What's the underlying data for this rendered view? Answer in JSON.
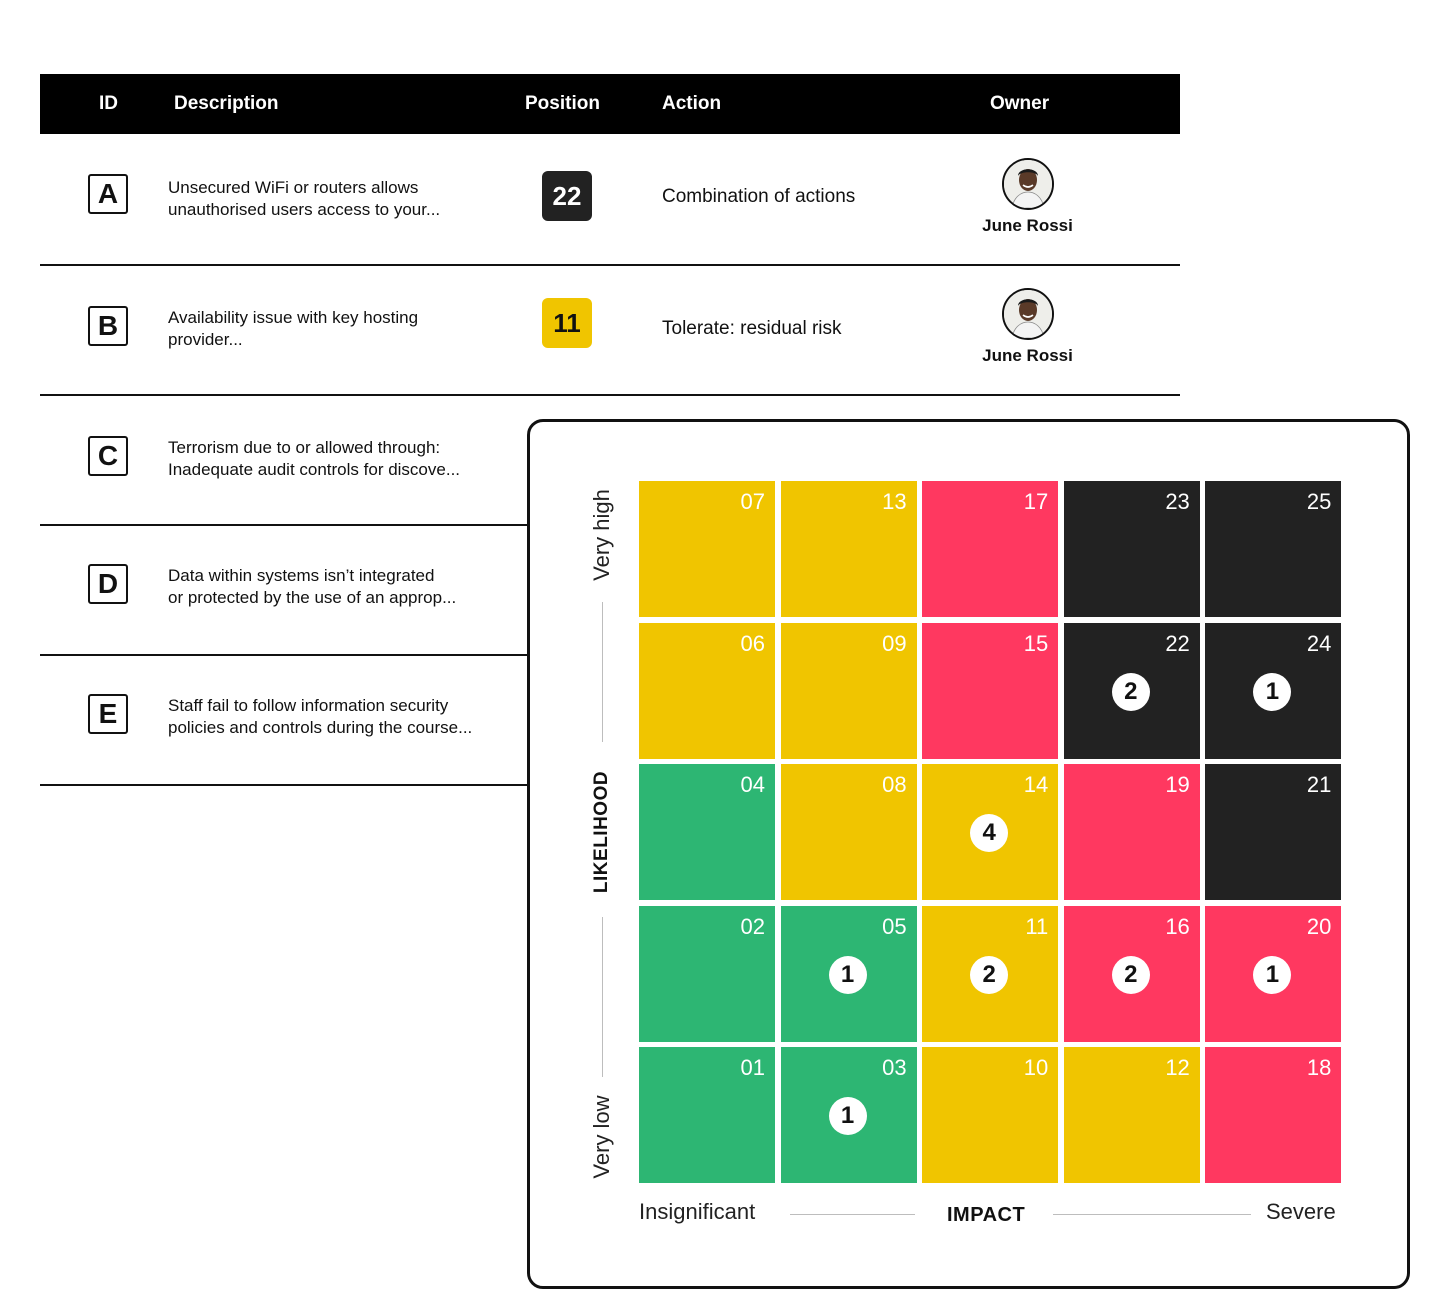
{
  "table": {
    "headers": {
      "id": "ID",
      "description": "Description",
      "position": "Position",
      "action": "Action",
      "owner": "Owner"
    },
    "rows": [
      {
        "id": "A",
        "description_lines": [
          "Unsecured WiFi or routers allows",
          "unauthorised users access to your..."
        ],
        "position": "22",
        "position_color": "#222222",
        "action": "Combination of actions",
        "owner": "June Rossi"
      },
      {
        "id": "B",
        "description_lines": [
          "Availability issue with key hosting",
          "provider..."
        ],
        "position": "11",
        "position_color": "#f0c500",
        "action": "Tolerate: residual risk",
        "owner": "June Rossi"
      },
      {
        "id": "C",
        "description_lines": [
          "Terrorism due to or allowed through:",
          "Inadequate audit controls for discove..."
        ]
      },
      {
        "id": "D",
        "description_lines": [
          "Data within systems isn’t integrated",
          "or protected by the use of an approp..."
        ]
      },
      {
        "id": "E",
        "description_lines": [
          "Staff fail to follow information security",
          "policies and controls during the course..."
        ]
      }
    ]
  },
  "matrix": {
    "colors": {
      "green": "#2db673",
      "yellow": "#f0c500",
      "red": "#ff3860",
      "black": "#222222"
    },
    "y_axis": {
      "title": "LIKELIHOOD",
      "high_label": "Very high",
      "low_label": "Very low"
    },
    "x_axis": {
      "title": "IMPACT",
      "low_label": "Insignificant",
      "high_label": "Severe"
    },
    "rows": [
      [
        {
          "n": "07",
          "c": "yellow"
        },
        {
          "n": "13",
          "c": "yellow"
        },
        {
          "n": "17",
          "c": "red"
        },
        {
          "n": "23",
          "c": "black"
        },
        {
          "n": "25",
          "c": "black"
        }
      ],
      [
        {
          "n": "06",
          "c": "yellow"
        },
        {
          "n": "09",
          "c": "yellow"
        },
        {
          "n": "15",
          "c": "red"
        },
        {
          "n": "22",
          "c": "black",
          "m": "2"
        },
        {
          "n": "24",
          "c": "black",
          "m": "1"
        }
      ],
      [
        {
          "n": "04",
          "c": "green"
        },
        {
          "n": "08",
          "c": "yellow"
        },
        {
          "n": "14",
          "c": "yellow",
          "m": "4"
        },
        {
          "n": "19",
          "c": "red"
        },
        {
          "n": "21",
          "c": "black"
        }
      ],
      [
        {
          "n": "02",
          "c": "green"
        },
        {
          "n": "05",
          "c": "green",
          "m": "1"
        },
        {
          "n": "11",
          "c": "yellow",
          "m": "2"
        },
        {
          "n": "16",
          "c": "red",
          "m": "2"
        },
        {
          "n": "20",
          "c": "red",
          "m": "1"
        }
      ],
      [
        {
          "n": "01",
          "c": "green"
        },
        {
          "n": "03",
          "c": "green",
          "m": "1"
        },
        {
          "n": "10",
          "c": "yellow"
        },
        {
          "n": "12",
          "c": "yellow"
        },
        {
          "n": "18",
          "c": "red"
        }
      ]
    ]
  }
}
